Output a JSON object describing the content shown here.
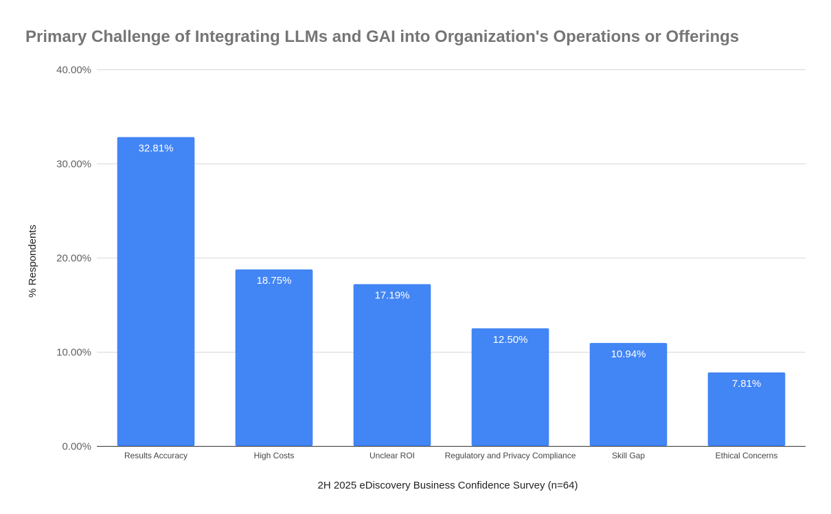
{
  "chart_data": {
    "type": "bar",
    "title": "Primary Challenge of Integrating LLMs and GAI into Organization's Operations or Offerings",
    "xlabel": "2H 2025 eDiscovery Business Confidence Survey (n=64)",
    "ylabel": "% Respondents",
    "categories": [
      "Results Accuracy",
      "High Costs",
      "Unclear ROI",
      "Regulatory and Privacy Compliance",
      "Skill Gap",
      "Ethical Concerns"
    ],
    "values": [
      32.81,
      18.75,
      17.19,
      12.5,
      10.94,
      7.81
    ],
    "data_labels": [
      "32.81%",
      "18.75%",
      "17.19%",
      "12.50%",
      "10.94%",
      "7.81%"
    ],
    "ylim": [
      0,
      40
    ],
    "yticks": [
      0,
      10,
      20,
      30,
      40
    ],
    "ytick_labels": [
      "0.00%",
      "10.00%",
      "20.00%",
      "30.00%",
      "40.00%"
    ],
    "grid": true,
    "legend": "none",
    "bar_color": "#4285F4"
  }
}
